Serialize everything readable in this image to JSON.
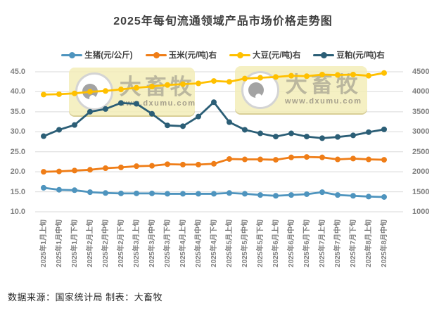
{
  "header": {
    "title": "2025年每旬流通领域产品市场价格走势图"
  },
  "legend": {
    "items": [
      {
        "label": "生猪(元/公斤)",
        "color": "#4e94be"
      },
      {
        "label": "玉米(元/吨)右",
        "color": "#ef7d17"
      },
      {
        "label": "大豆(元/吨)右",
        "color": "#ffc000"
      },
      {
        "label": "豆粕(元/吨)右",
        "color": "#2b5e76"
      }
    ]
  },
  "watermark": {
    "brand": "大畜牧",
    "url": "www.dxumu.com"
  },
  "footer": {
    "source": "数据来源：国家统计局 制表：大畜牧"
  },
  "chart_data": {
    "type": "line",
    "title": "2025年每旬流通领域产品市场价格走势图",
    "categories": [
      "2025年1月上旬",
      "2025年1月中旬",
      "2025年1月下旬",
      "2025年2月上旬",
      "2025年2月中旬",
      "2025年2月下旬",
      "2025年3月上旬",
      "2025年3月中旬",
      "2025年3月下旬",
      "2025年4月上旬",
      "2025年4月中旬",
      "2025年4月下旬",
      "2025年5月上旬",
      "2025年5月中旬",
      "2025年5月下旬",
      "2025年6月上旬",
      "2025年6月中旬",
      "2025年6月下旬",
      "2025年7月上旬",
      "2025年7月中旬",
      "2025年7月下旬",
      "2025年8月上旬",
      "2025年8月中旬"
    ],
    "series": [
      {
        "name": "生猪(元/公斤)",
        "axis": "left",
        "color": "#4e94be",
        "values": [
          16.0,
          15.5,
          15.4,
          14.9,
          14.7,
          14.6,
          14.6,
          14.6,
          14.5,
          14.5,
          14.5,
          14.5,
          14.7,
          14.5,
          14.2,
          14.0,
          14.2,
          14.4,
          14.9,
          14.2,
          14.0,
          13.8,
          13.7
        ]
      },
      {
        "name": "玉米(元/吨)右",
        "axis": "right",
        "color": "#ef7d17",
        "values": [
          2000,
          2010,
          2030,
          2050,
          2090,
          2110,
          2140,
          2150,
          2190,
          2180,
          2180,
          2200,
          2320,
          2310,
          2310,
          2300,
          2360,
          2370,
          2360,
          2310,
          2330,
          2310,
          2300
        ]
      },
      {
        "name": "大豆(元/吨)右",
        "axis": "right",
        "color": "#ffc000",
        "values": [
          3930,
          3940,
          3960,
          4000,
          4020,
          4060,
          4100,
          4130,
          4170,
          4190,
          4210,
          4270,
          4250,
          4330,
          4350,
          4370,
          4400,
          4390,
          4430,
          4420,
          4430,
          4400,
          4470
        ]
      },
      {
        "name": "豆粕(元/吨)右",
        "axis": "right",
        "color": "#2b5e76",
        "values": [
          2890,
          3050,
          3170,
          3500,
          3570,
          3720,
          3700,
          3450,
          3160,
          3140,
          3380,
          3740,
          3240,
          3050,
          2960,
          2880,
          2960,
          2880,
          2840,
          2870,
          2910,
          2990,
          3060
        ]
      }
    ],
    "left_axis": {
      "min": 10,
      "max": 45,
      "step": 5,
      "tick_labels": [
        "45.0",
        "40.0",
        "35.0",
        "30.0",
        "25.0",
        "20.0",
        "15.0",
        "10.0"
      ]
    },
    "right_axis": {
      "min": 1000,
      "max": 4500,
      "step": 500,
      "tick_labels": [
        "4500",
        "4000",
        "3500",
        "3000",
        "2500",
        "2000",
        "1500",
        "1000"
      ]
    },
    "grid": true,
    "legend_position": "top"
  }
}
